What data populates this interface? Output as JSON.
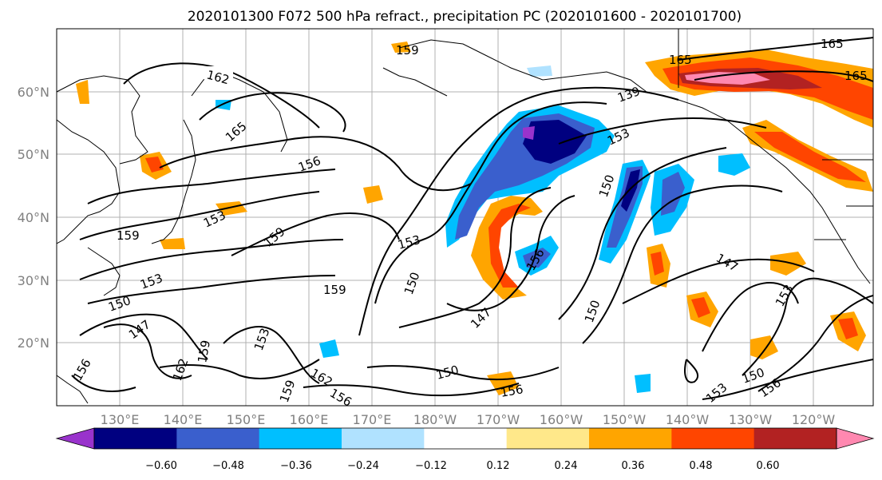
{
  "title": "2020101300 F072 500 hPa refract., precipitation PC (2020101600 - 2020101700)",
  "map": {
    "lat_labels": [
      "60°N",
      "50°N",
      "40°N",
      "30°N",
      "20°N"
    ],
    "lon_labels": [
      "130°E",
      "140°E",
      "150°E",
      "160°E",
      "170°E",
      "180°W",
      "170°W",
      "160°W",
      "150°W",
      "140°W",
      "130°W",
      "120°W"
    ],
    "grid": true
  },
  "colorbar": {
    "ticks": [
      "−0.60",
      "−0.48",
      "−0.36",
      "−0.24",
      "−0.12",
      "0.12",
      "0.24",
      "0.36",
      "0.48",
      "0.60"
    ],
    "colors": [
      "#9933cc",
      "#000080",
      "#3a5fcd",
      "#00bfff",
      "#b0e2ff",
      "#ffffff",
      "#ffe88a",
      "#ffa500",
      "#ff4500",
      "#b22222",
      "#ff88b0"
    ],
    "extend": "both"
  },
  "contour_labels": [
    "162",
    "165",
    "159",
    "165",
    "165",
    "165",
    "156",
    "153",
    "159",
    "153",
    "159",
    "159",
    "150",
    "147",
    "156",
    "162",
    "159",
    "153",
    "156",
    "162",
    "159",
    "150",
    "147",
    "153",
    "150",
    "156",
    "153",
    "139",
    "150",
    "147",
    "153",
    "150",
    "156",
    "153",
    "150",
    "156"
  ]
}
